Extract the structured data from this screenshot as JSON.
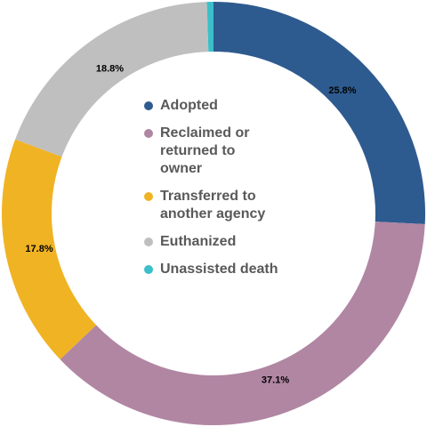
{
  "chart_data": {
    "type": "donut",
    "categories": [
      "Adopted",
      "Reclaimed or returned to owner",
      "Transferred to another agency",
      "Euthanized",
      "Unassisted death"
    ],
    "values": [
      25.8,
      37.1,
      17.8,
      18.8,
      0.5
    ],
    "value_labels": [
      "25.8%",
      "37.1%",
      "17.8%",
      "18.8%",
      null
    ],
    "colors": [
      "#2e5b8f",
      "#b086a3",
      "#f0b323",
      "#bfbfbf",
      "#3bbfc8"
    ],
    "legend": "center"
  }
}
